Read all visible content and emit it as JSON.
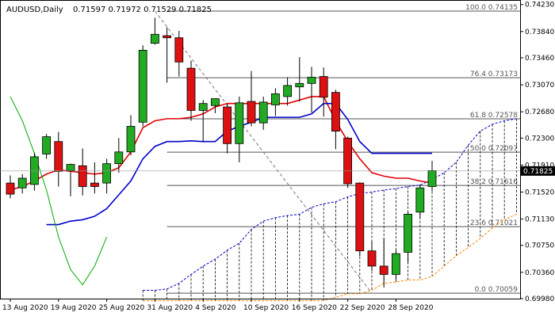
{
  "header": {
    "symbol": "AUDUSD,Daily",
    "ohlc": "0.71597 0.71972 0.71529 0.71825"
  },
  "chart_data": {
    "type": "candlestick",
    "symbol": "AUDUSD",
    "timeframe": "Daily",
    "ylim": [
      0.6998,
      0.7425
    ],
    "y_ticks": [
      "0.74230",
      "0.73840",
      "0.73460",
      "0.73070",
      "0.72680",
      "0.72300",
      "0.71910",
      "0.71520",
      "0.71130",
      "0.70750",
      "0.70360",
      "0.69980"
    ],
    "x_ticks": [
      {
        "label": "13 Aug 2020",
        "index": 0
      },
      {
        "label": "19 Aug 2020",
        "index": 4
      },
      {
        "label": "25 Aug 2020",
        "index": 8
      },
      {
        "label": "31 Aug 2020",
        "index": 12
      },
      {
        "label": "4 Sep 2020",
        "index": 16
      },
      {
        "label": "10 Sep 2020",
        "index": 20
      },
      {
        "label": "16 Sep 2020",
        "index": 24
      },
      {
        "label": "22 Sep 2020",
        "index": 28
      },
      {
        "label": "28 Sep 2020",
        "index": 32
      }
    ],
    "current_price": "0.71825",
    "candles": [
      {
        "o": 0.7165,
        "h": 0.7176,
        "l": 0.7143,
        "c": 0.7149
      },
      {
        "o": 0.7158,
        "h": 0.7178,
        "l": 0.715,
        "c": 0.7172
      },
      {
        "o": 0.7163,
        "h": 0.7209,
        "l": 0.7154,
        "c": 0.7203
      },
      {
        "o": 0.7207,
        "h": 0.7236,
        "l": 0.72,
        "c": 0.7232
      },
      {
        "o": 0.7225,
        "h": 0.7239,
        "l": 0.716,
        "c": 0.7182
      },
      {
        "o": 0.7183,
        "h": 0.7193,
        "l": 0.7146,
        "c": 0.7192
      },
      {
        "o": 0.719,
        "h": 0.7215,
        "l": 0.7147,
        "c": 0.716
      },
      {
        "o": 0.7165,
        "h": 0.7195,
        "l": 0.715,
        "c": 0.716
      },
      {
        "o": 0.7165,
        "h": 0.72,
        "l": 0.715,
        "c": 0.7193
      },
      {
        "o": 0.7193,
        "h": 0.723,
        "l": 0.718,
        "c": 0.721
      },
      {
        "o": 0.721,
        "h": 0.7263,
        "l": 0.7205,
        "c": 0.7247
      },
      {
        "o": 0.7253,
        "h": 0.7364,
        "l": 0.7247,
        "c": 0.7357
      },
      {
        "o": 0.7367,
        "h": 0.7404,
        "l": 0.7365,
        "c": 0.738
      },
      {
        "o": 0.7378,
        "h": 0.739,
        "l": 0.731,
        "c": 0.7375
      },
      {
        "o": 0.7375,
        "h": 0.7385,
        "l": 0.7319,
        "c": 0.734
      },
      {
        "o": 0.7331,
        "h": 0.7342,
        "l": 0.7255,
        "c": 0.727
      },
      {
        "o": 0.727,
        "h": 0.7285,
        "l": 0.7224,
        "c": 0.728
      },
      {
        "o": 0.7277,
        "h": 0.7286,
        "l": 0.7266,
        "c": 0.7287
      },
      {
        "o": 0.7275,
        "h": 0.728,
        "l": 0.7208,
        "c": 0.7222
      },
      {
        "o": 0.7222,
        "h": 0.729,
        "l": 0.7195,
        "c": 0.7281
      },
      {
        "o": 0.7283,
        "h": 0.7327,
        "l": 0.7247,
        "c": 0.7252
      },
      {
        "o": 0.7252,
        "h": 0.729,
        "l": 0.7242,
        "c": 0.7282
      },
      {
        "o": 0.7278,
        "h": 0.7302,
        "l": 0.7262,
        "c": 0.7294
      },
      {
        "o": 0.729,
        "h": 0.7318,
        "l": 0.7277,
        "c": 0.7306
      },
      {
        "o": 0.7304,
        "h": 0.7347,
        "l": 0.7283,
        "c": 0.7309
      },
      {
        "o": 0.7309,
        "h": 0.7333,
        "l": 0.7267,
        "c": 0.7318
      },
      {
        "o": 0.7319,
        "h": 0.7332,
        "l": 0.7261,
        "c": 0.7289
      },
      {
        "o": 0.7296,
        "h": 0.73,
        "l": 0.7214,
        "c": 0.724
      },
      {
        "o": 0.723,
        "h": 0.7232,
        "l": 0.7158,
        "c": 0.7164
      },
      {
        "o": 0.7165,
        "h": 0.7166,
        "l": 0.7059,
        "c": 0.7067
      },
      {
        "o": 0.7067,
        "h": 0.7081,
        "l": 0.7038,
        "c": 0.7045
      },
      {
        "o": 0.7045,
        "h": 0.7085,
        "l": 0.7014,
        "c": 0.7033
      },
      {
        "o": 0.7033,
        "h": 0.7068,
        "l": 0.7025,
        "c": 0.7063
      },
      {
        "o": 0.7065,
        "h": 0.7123,
        "l": 0.705,
        "c": 0.712
      },
      {
        "o": 0.7123,
        "h": 0.7163,
        "l": 0.7114,
        "c": 0.7158
      },
      {
        "o": 0.716,
        "h": 0.7197,
        "l": 0.7153,
        "c": 0.7183
      }
    ],
    "lines": [
      {
        "color": "#e00000",
        "values": [
          0.7155,
          0.716,
          0.7168,
          0.7178,
          0.7184,
          0.7182,
          0.718,
          0.7178,
          0.718,
          0.7187,
          0.721,
          0.7245,
          0.7255,
          0.7258,
          0.7258,
          0.726,
          0.7265,
          0.7275,
          0.728,
          0.728,
          0.728,
          0.728,
          0.728,
          0.728,
          0.7285,
          0.729,
          0.729,
          0.7255,
          0.7225,
          0.72,
          0.718,
          0.7175,
          0.7172,
          0.7172,
          0.7168,
          0.7165
        ]
      },
      {
        "color": "#0000cc",
        "values": [
          null,
          null,
          null,
          0.7105,
          0.7105,
          0.711,
          0.7112,
          0.7117,
          0.7128,
          0.7148,
          0.7168,
          0.72,
          0.7218,
          0.7225,
          0.7225,
          0.7226,
          0.7225,
          0.7225,
          0.724,
          0.7247,
          0.7253,
          0.726,
          0.726,
          0.726,
          0.726,
          0.7265,
          0.728,
          0.728,
          0.7257,
          0.7225,
          0.7208,
          0.7208,
          0.7208,
          0.7208,
          0.7208,
          0.7208
        ]
      },
      {
        "color": "#00aa00",
        "values": [
          0.729,
          0.7255,
          0.7208,
          0.7155,
          0.7087,
          0.704,
          0.7018,
          0.7045,
          0.7087
        ]
      }
    ],
    "cloud": {
      "upper": [
        null,
        null,
        null,
        null,
        null,
        null,
        null,
        null,
        null,
        null,
        null,
        0.701,
        0.701,
        0.7012,
        0.702,
        0.7033,
        0.7045,
        0.7055,
        0.7068,
        0.7078,
        0.7098,
        0.711,
        0.7115,
        0.7118,
        0.712,
        0.713,
        0.7135,
        0.7138,
        0.7145,
        0.715,
        0.7152,
        0.7155,
        0.7157,
        0.716,
        0.7162,
        0.717,
        0.718,
        0.7195,
        0.722,
        0.724,
        0.725,
        0.7255,
        0.7258
      ],
      "lower": [
        null,
        null,
        null,
        null,
        null,
        null,
        null,
        null,
        null,
        null,
        null,
        0.6995,
        0.6995,
        0.6995,
        0.6995,
        0.6995,
        0.6995,
        0.6995,
        0.6995,
        0.6995,
        0.6995,
        0.6995,
        0.6995,
        0.6995,
        0.6995,
        0.6995,
        0.6995,
        0.7,
        0.7005,
        0.7005,
        0.701,
        0.702,
        0.7022,
        0.7025,
        0.7025,
        0.703,
        0.7045,
        0.706,
        0.7072,
        0.7085,
        0.71,
        0.7112,
        0.712
      ]
    },
    "fib_levels": [
      {
        "label": "100.0 0.74135",
        "price": 0.74135
      },
      {
        "label": "76.4 0.73173",
        "price": 0.73173
      },
      {
        "label": "61.8 0.72578",
        "price": 0.72578
      },
      {
        "label": "50.0 0.72097",
        "price": 0.72097
      },
      {
        "label": "38.2 0.71616",
        "price": 0.71616
      },
      {
        "label": "23.6 0.71021",
        "price": 0.71021
      },
      {
        "label": "0.0 0.70059",
        "price": 0.70059
      }
    ],
    "trendline": {
      "from": {
        "index": 12,
        "price": 0.74135
      },
      "to": {
        "index": 30,
        "price": 0.70059
      }
    },
    "colors": {
      "up": "#22aa22",
      "down": "#dd1111",
      "wick": "#000000",
      "grid": "#555555",
      "fib": "#555555",
      "cloud_up": "#0000cc",
      "cloud_down": "#ff8800"
    }
  }
}
